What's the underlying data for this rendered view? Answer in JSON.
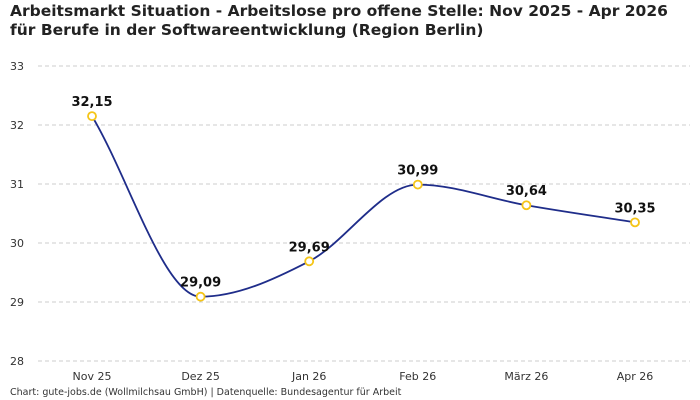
{
  "chart_data": {
    "type": "line",
    "title": "Arbeitsmarkt Situation - Arbeitslose pro offene Stelle: Nov 2025 - Apr 2026 für Berufe in der Softwareentwicklung (Region Berlin)",
    "xlabel": "",
    "ylabel": "",
    "categories": [
      "Nov 25",
      "Dez 25",
      "Jan 26",
      "Feb 26",
      "März 26",
      "Apr 26"
    ],
    "series": [
      {
        "values": [
          32.15,
          29.09,
          29.69,
          30.99,
          30.64,
          30.35
        ],
        "labels": [
          "32,15",
          "29,09",
          "29,69",
          "30,99",
          "30,64",
          "30,35"
        ]
      }
    ],
    "yticks": [
      28,
      29,
      30,
      31,
      32,
      33
    ],
    "ylim": [
      28,
      33
    ],
    "grid": true,
    "line_color": "#1f2d8a",
    "marker_color": "#f5c518",
    "grid_color": "#cccccc"
  },
  "source": "Chart: gute-jobs.de (Wollmilchsau GmbH) | Datenquelle: Bundesagentur für Arbeit"
}
